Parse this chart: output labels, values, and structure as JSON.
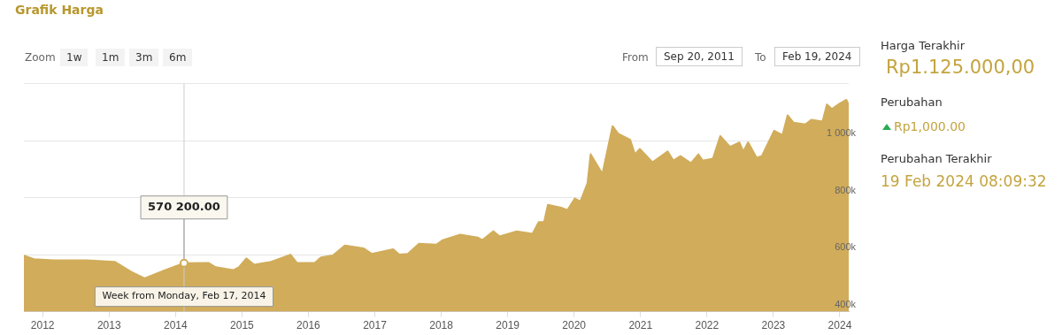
{
  "chart_data": {
    "type": "area",
    "title": "Grafik Harga",
    "x": [
      "2011-09-20",
      "2011-11-15",
      "2012-03-01",
      "2012-09-01",
      "2013-02-01",
      "2013-05-01",
      "2013-07-15",
      "2013-11-01",
      "2014-02-17",
      "2014-07-01",
      "2014-08-10",
      "2014-11-15",
      "2014-12-15",
      "2015-01-25",
      "2015-03-08",
      "2015-06-10",
      "2015-09-25",
      "2015-10-30",
      "2016-02-05",
      "2016-03-10",
      "2016-05-15",
      "2016-07-20",
      "2016-11-01",
      "2016-12-15",
      "2017-04-12",
      "2017-05-15",
      "2017-07-01",
      "2017-09-01",
      "2017-12-05",
      "2018-01-10",
      "2018-04-15",
      "2018-07-20",
      "2018-08-15",
      "2018-10-15",
      "2018-11-18",
      "2019-02-20",
      "2019-05-18",
      "2019-06-20",
      "2019-07-20",
      "2019-08-10",
      "2019-10-22",
      "2019-11-25",
      "2020-01-05",
      "2020-02-05",
      "2020-03-15",
      "2020-04-01",
      "2020-06-05",
      "2020-07-31",
      "2020-08-30",
      "2020-11-05",
      "2020-12-01",
      "2020-12-28",
      "2021-03-08",
      "2021-05-30",
      "2021-07-01",
      "2021-08-08",
      "2021-10-05",
      "2021-11-15",
      "2021-12-08",
      "2022-02-03",
      "2022-03-15",
      "2022-05-08",
      "2022-06-28",
      "2022-07-20",
      "2022-08-15",
      "2022-10-01",
      "2022-10-30",
      "2023-01-05",
      "2023-02-20",
      "2023-03-20",
      "2023-04-22",
      "2023-06-25",
      "2023-07-28",
      "2023-09-28",
      "2023-10-22",
      "2023-11-18",
      "2024-01-01",
      "2024-02-06",
      "2024-02-19"
    ],
    "series": [
      {
        "color": "#d1ac5a",
        "values": [
          597000,
          584000,
          580000,
          580000,
          575000,
          540000,
          517000,
          545000,
          570200,
          571000,
          556000,
          546000,
          556000,
          587000,
          565000,
          575000,
          600000,
          571000,
          571000,
          590000,
          597000,
          632000,
          622000,
          603000,
          619000,
          600000,
          603000,
          638000,
          635000,
          651000,
          670000,
          660000,
          651000,
          682000,
          664000,
          682000,
          673000,
          714000,
          714000,
          775000,
          765000,
          756000,
          797000,
          787000,
          851000,
          952000,
          883000,
          1051000,
          1025000,
          1003000,
          952000,
          971000,
          924000,
          962000,
          930000,
          946000,
          921000,
          952000,
          930000,
          937000,
          1016000,
          978000,
          994000,
          962000,
          994000,
          940000,
          946000,
          1035000,
          1019000,
          1089000,
          1063000,
          1057000,
          1073000,
          1067000,
          1127000,
          1111000,
          1130000,
          1143000,
          1125000
        ]
      }
    ],
    "xlim": [
      "2011-09-20",
      "2024-02-19"
    ],
    "xticks": [
      "2012",
      "2013",
      "2014",
      "2015",
      "2016",
      "2017",
      "2018",
      "2019",
      "2020",
      "2021",
      "2022",
      "2023",
      "2024"
    ],
    "ylim": [
      400000,
      1200000
    ],
    "yticks": [
      {
        "value": 400000,
        "label": "400k"
      },
      {
        "value": 600000,
        "label": "600k"
      },
      {
        "value": 800000,
        "label": "800k"
      },
      {
        "value": 1000000,
        "label": "1 000k"
      },
      {
        "value": 1200000,
        "label": null
      }
    ],
    "grid": "y",
    "legend": false,
    "marker": "none",
    "ref_lines": [
      {
        "axis": "x",
        "value": "2014-02-17",
        "label": null,
        "color": "#cccccc"
      }
    ],
    "annotations": [
      "Zoom",
      "1w",
      "1m",
      "3m",
      "6m",
      "From",
      "Sep 20, 2011",
      "To",
      "Feb 19, 2024",
      "Harga Terakhir",
      "Rp1.125.000,00",
      "Perubahan",
      "Rp1,000.00",
      "Perubahan Terakhir",
      "19 Feb 2024 08:09:32",
      {
        "text": "570 200.00",
        "x": "2014-02-17",
        "y": 570200
      },
      {
        "text": "Week from Monday, Feb 17, 2014",
        "x": "2014-02-17",
        "y": 400000
      }
    ]
  }
}
